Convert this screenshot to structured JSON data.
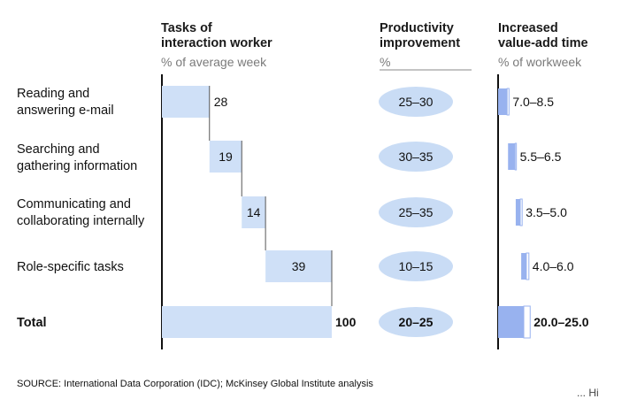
{
  "headers": {
    "tasks": {
      "title_line1": "Tasks of",
      "title_line2": "interaction worker",
      "subtitle": "% of average week"
    },
    "productivity": {
      "title_line1": "Productivity",
      "title_line2": "improvement",
      "subtitle": "%"
    },
    "value_add": {
      "title_line1": "Increased",
      "title_line2": "value-add time",
      "subtitle": "% of workweek"
    }
  },
  "rows": [
    {
      "label_line1": "Reading and",
      "label_line2": "answering e-mail",
      "share": 28,
      "share_label": "28",
      "improvement": "25–30",
      "value_add": "7.0–8.5",
      "value_add_low": 7.0,
      "value_add_high": 8.5
    },
    {
      "label_line1": "Searching and",
      "label_line2": "gathering information",
      "share": 19,
      "share_label": "19",
      "improvement": "30–35",
      "value_add": "5.5–6.5",
      "value_add_low": 5.5,
      "value_add_high": 6.5
    },
    {
      "label_line1": "Communicating and",
      "label_line2": "collaborating internally",
      "share": 14,
      "share_label": "14",
      "improvement": "25–35",
      "value_add": "3.5–5.0",
      "value_add_low": 3.5,
      "value_add_high": 5.0
    },
    {
      "label_line1": "Role-specific tasks",
      "label_line2": "",
      "share": 39,
      "share_label": "39",
      "improvement": "10–15",
      "value_add": "4.0–6.0",
      "value_add_low": 4.0,
      "value_add_high": 6.0
    }
  ],
  "total": {
    "label": "Total",
    "share": 100,
    "share_label": "100",
    "improvement": "20–25",
    "value_add": "20.0–25.0",
    "value_add_low": 20.0,
    "value_add_high": 25.0
  },
  "source": "SOURCE: International Data Corporation (IDC); McKinsey Global Institute analysis",
  "corner_fragment": "...  Hi",
  "colors": {
    "bar_light": "#cfe0f7",
    "bar_dark": "#98b2ef",
    "ellipse": "#c9dcf5",
    "axis": "#111111",
    "text_muted": "#7a7a7a"
  },
  "chart_data": {
    "type": "bar",
    "categories": [
      "Reading and answering e-mail",
      "Searching and gathering information",
      "Communicating and collaborating internally",
      "Role-specific tasks",
      "Total"
    ],
    "series": [
      {
        "name": "Tasks of interaction worker",
        "values": [
          28,
          19,
          14,
          39,
          100
        ]
      },
      {
        "name": "Productivity improvement",
        "values": [
          "25–30",
          "30–35",
          "25–35",
          "10–15",
          "20–25"
        ]
      },
      {
        "name": "Increased value-add time",
        "values": [
          [
            7.0,
            8.5
          ],
          [
            5.5,
            6.5
          ],
          [
            3.5,
            5.0
          ],
          [
            4.0,
            6.0
          ],
          [
            20.0,
            25.0
          ]
        ]
      }
    ],
    "title": "",
    "waterfall": true
  }
}
